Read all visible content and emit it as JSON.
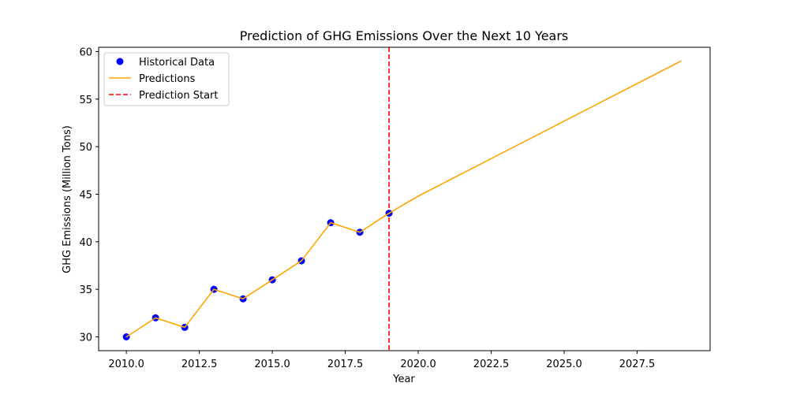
{
  "chart_data": {
    "type": "line",
    "title": "Prediction of GHG Emissions Over the Next 10 Years",
    "xlabel": "Year",
    "ylabel": "GHG Emissions (Million Tons)",
    "xlim": [
      2009.05,
      2030.0
    ],
    "ylim": [
      28.55,
      60.45
    ],
    "xticks": [
      2010.0,
      2012.5,
      2015.0,
      2017.5,
      2020.0,
      2022.5,
      2025.0,
      2027.5
    ],
    "xtick_labels": [
      "2010.0",
      "2012.5",
      "2015.0",
      "2017.5",
      "2020.0",
      "2022.5",
      "2025.0",
      "2027.5"
    ],
    "yticks": [
      30,
      35,
      40,
      45,
      50,
      55,
      60
    ],
    "ytick_labels": [
      "30",
      "35",
      "40",
      "45",
      "50",
      "55",
      "60"
    ],
    "series": [
      {
        "name": "Historical Data",
        "kind": "scatter",
        "color": "#0000ff",
        "x": [
          2010,
          2011,
          2012,
          2013,
          2014,
          2015,
          2016,
          2017,
          2018,
          2019
        ],
        "y": [
          30,
          32,
          31,
          35,
          34,
          36,
          38,
          42,
          41,
          43
        ]
      },
      {
        "name": "Predictions",
        "kind": "line",
        "color": "#ffa500",
        "x": [
          2010,
          2011,
          2012,
          2013,
          2014,
          2015,
          2016,
          2017,
          2018,
          2019,
          2020,
          2029
        ],
        "y": [
          30,
          32,
          31,
          35,
          34,
          36,
          38,
          42,
          41,
          43,
          44.8,
          59
        ]
      },
      {
        "name": "Prediction Start",
        "kind": "vline",
        "color": "#ff0000",
        "x": 2019
      }
    ],
    "legend": {
      "placement": "top-left",
      "entries": [
        "Historical Data",
        "Predictions",
        "Prediction Start"
      ]
    },
    "grid": false
  }
}
